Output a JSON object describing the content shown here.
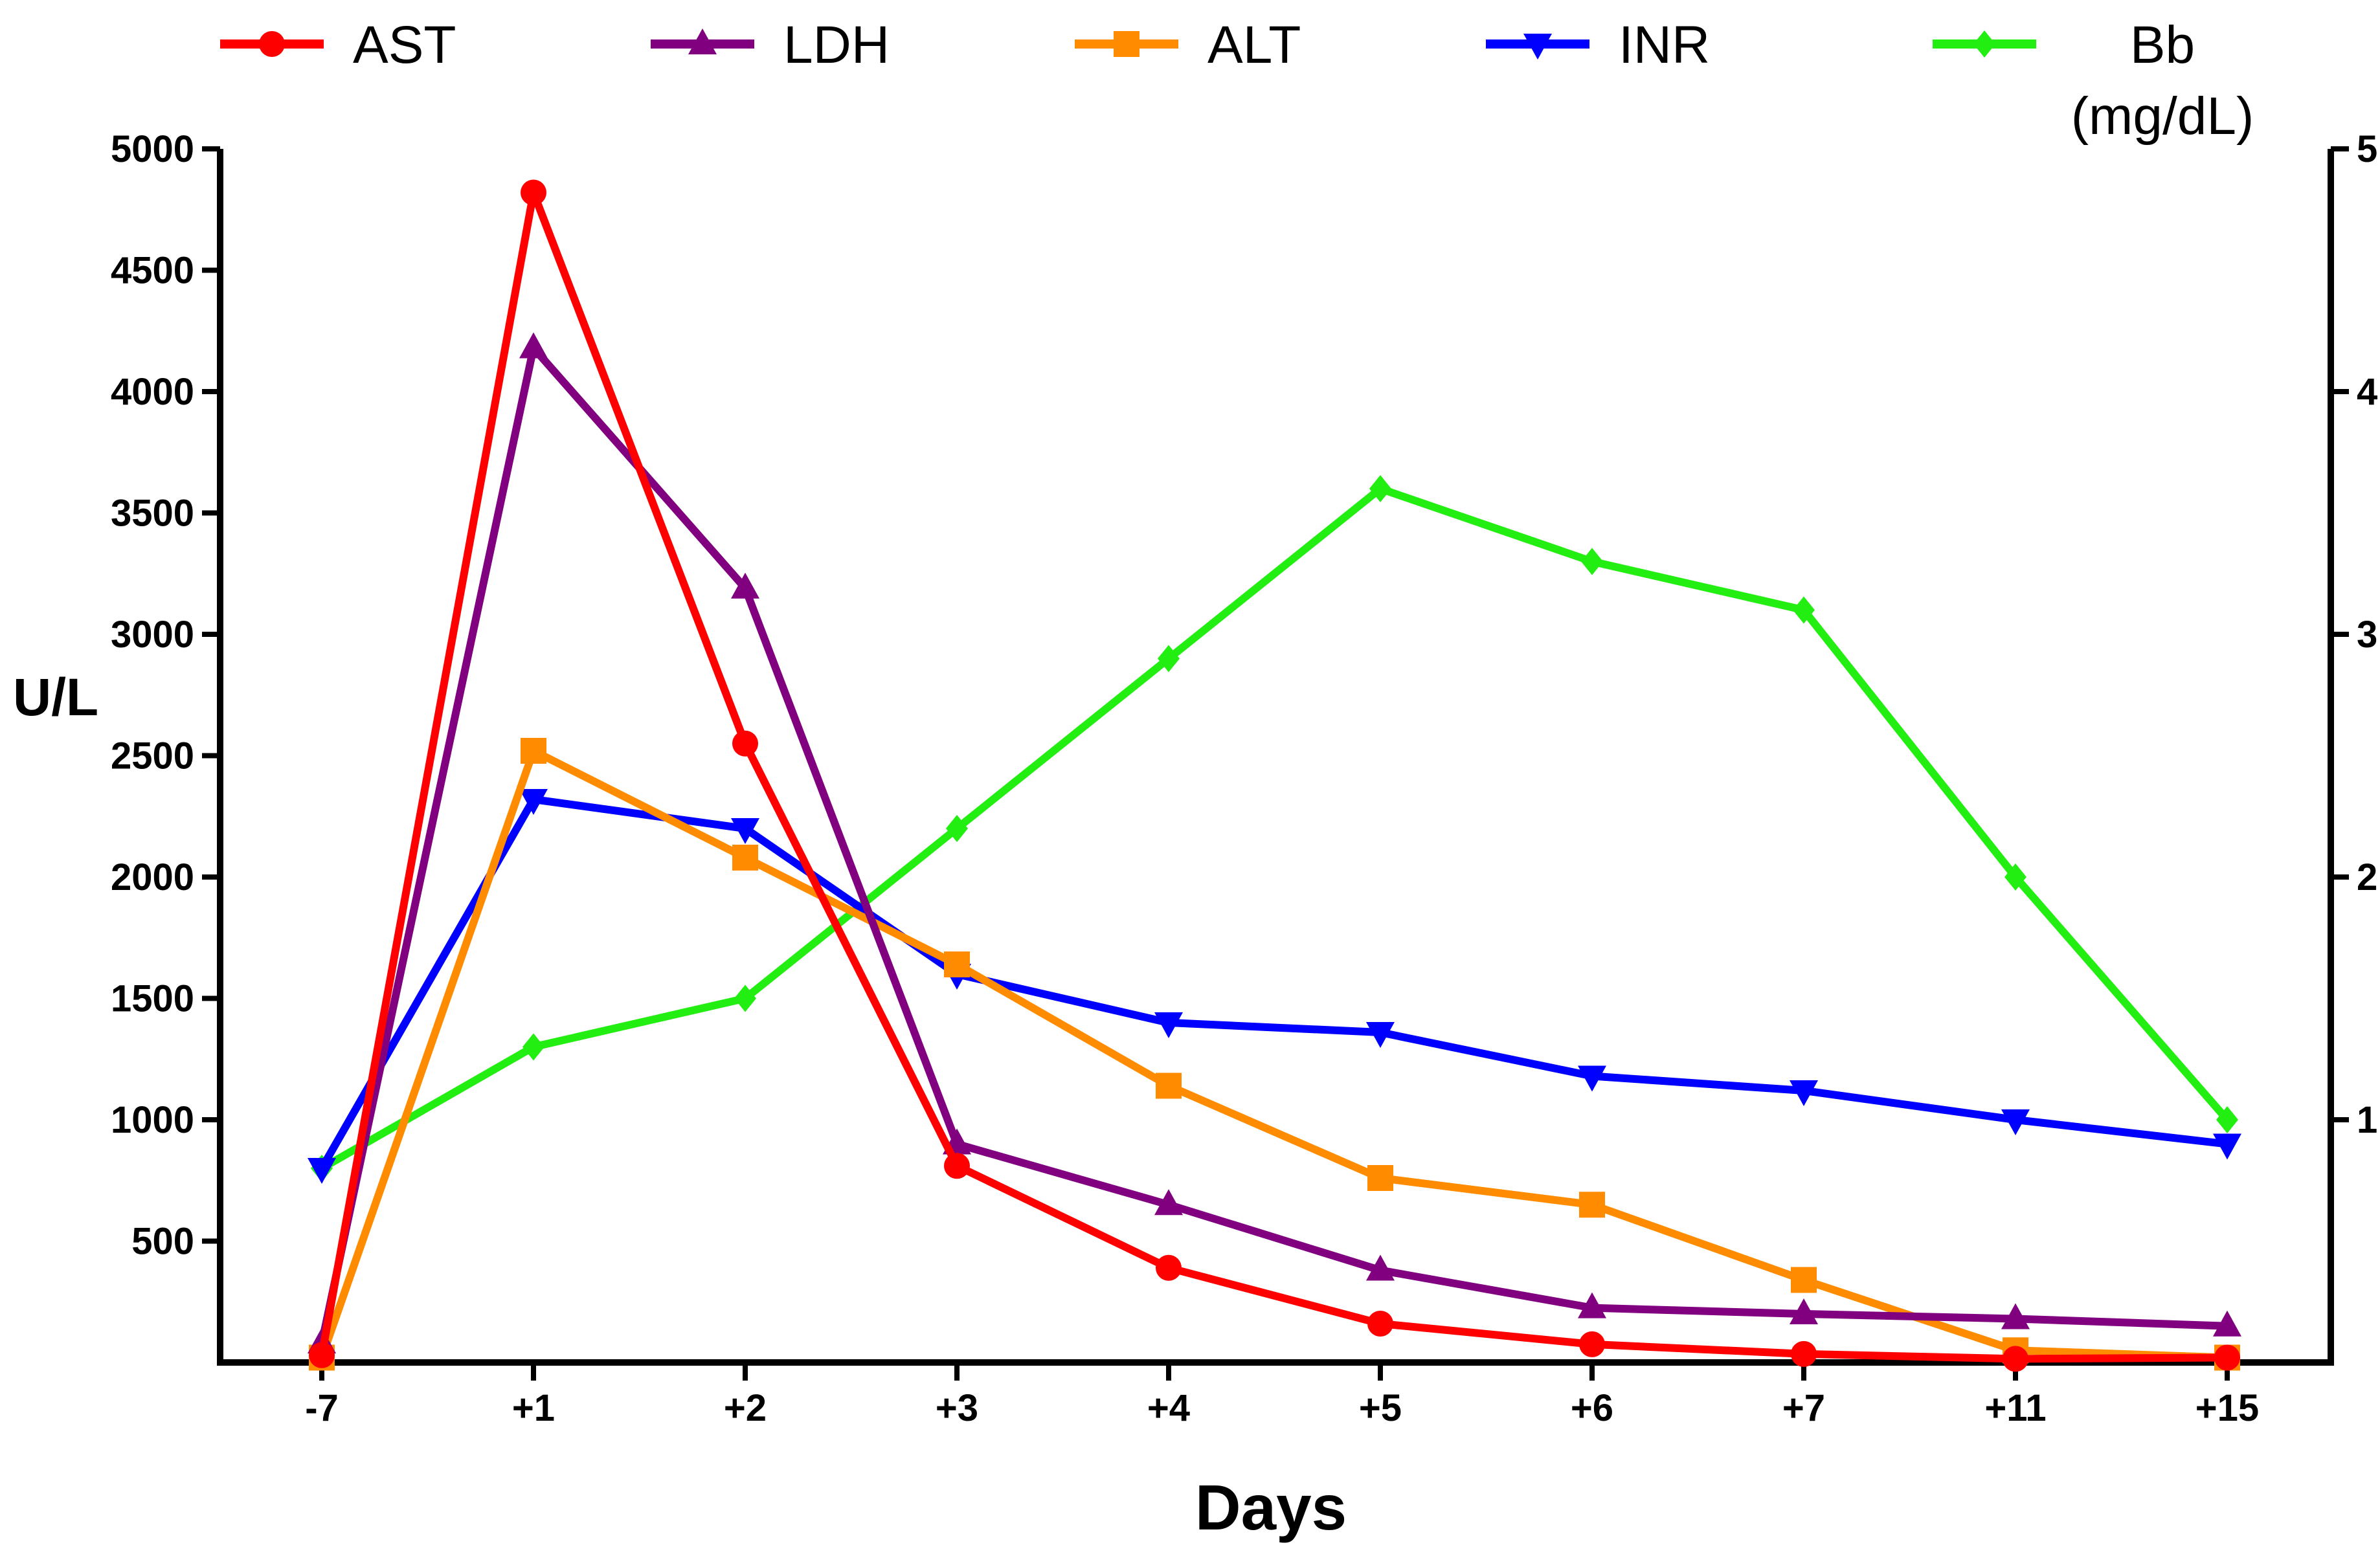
{
  "chart_data": {
    "type": "line",
    "title": "",
    "xlabel": "Days",
    "ylabel": "U/L",
    "categories": [
      "-7",
      "+1",
      "+2",
      "+3",
      "+4",
      "+5",
      "+6",
      "+7",
      "+11",
      "+15"
    ],
    "y_left": {
      "min": 0,
      "max": 5000,
      "ticks": [
        500,
        1000,
        1500,
        2000,
        2500,
        3000,
        3500,
        4000,
        4500,
        5000
      ]
    },
    "y_right": {
      "min": 0,
      "max": 5,
      "ticks": [
        1,
        2,
        3,
        4,
        5
      ]
    },
    "grid": false,
    "legend_position": "top",
    "series": [
      {
        "name": "AST",
        "axis": "left",
        "color": "#ff0000",
        "marker": "circle",
        "values": [
          30,
          4820,
          2550,
          810,
          390,
          160,
          75,
          35,
          15,
          20
        ]
      },
      {
        "name": "LDH",
        "axis": "left",
        "color": "#800080",
        "marker": "triangle-up",
        "values": [
          80,
          4180,
          3190,
          900,
          650,
          380,
          225,
          200,
          180,
          150
        ]
      },
      {
        "name": "ALT",
        "axis": "left",
        "color": "#ff8c00",
        "marker": "square",
        "values": [
          20,
          2520,
          2080,
          1640,
          1140,
          760,
          650,
          340,
          50,
          20
        ]
      },
      {
        "name": "INR",
        "axis": "right",
        "color": "#0000ff",
        "marker": "triangle-down",
        "values": [
          0.8,
          2.32,
          2.2,
          1.6,
          1.4,
          1.36,
          1.18,
          1.12,
          1.0,
          0.9
        ]
      },
      {
        "name": "Bb\n(mg/dL)",
        "axis": "right",
        "color": "#22ee11",
        "marker": "diamond",
        "values": [
          0.8,
          1.3,
          1.5,
          2.2,
          2.9,
          3.6,
          3.3,
          3.1,
          2.0,
          1.0
        ]
      }
    ]
  }
}
